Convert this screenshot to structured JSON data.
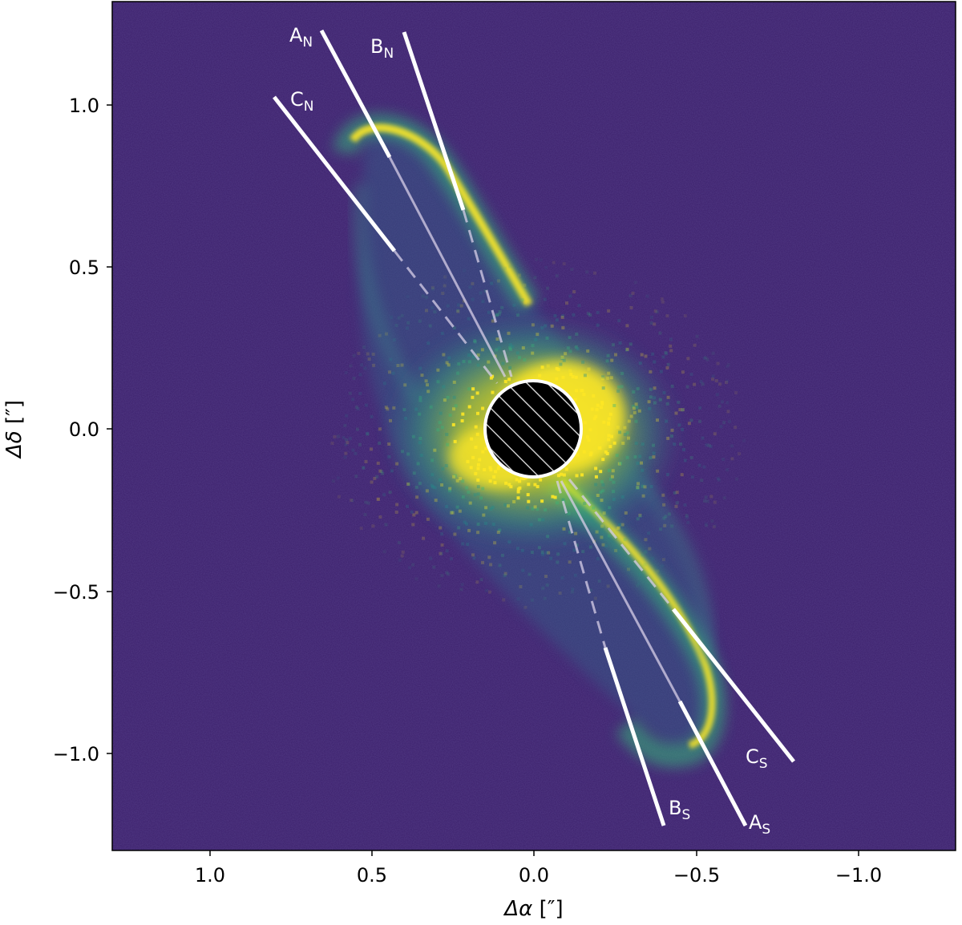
{
  "x_axis": {
    "title_symbol": "Δα",
    "title_unit": " [″]",
    "ticks": [
      "1.0",
      "0.5",
      "0.0",
      "−0.5",
      "−1.0"
    ]
  },
  "y_axis": {
    "title_symbol": "Δδ",
    "title_unit": " [″]",
    "ticks": [
      "1.0",
      "0.5",
      "0.0",
      "−0.5",
      "−1.0"
    ]
  },
  "image": {
    "colormap": "viridis",
    "background_color": "#3b1f6b",
    "disk_color_inner": "#fde725",
    "disk_color_outer": "#35b779",
    "mask": "hatched black circle with white outline at center"
  },
  "rays": [
    {
      "label": "A",
      "sub": "N"
    },
    {
      "label": "B",
      "sub": "N"
    },
    {
      "label": "C",
      "sub": "N"
    },
    {
      "label": "A",
      "sub": "S"
    },
    {
      "label": "B",
      "sub": "S"
    },
    {
      "label": "C",
      "sub": "S"
    }
  ]
}
